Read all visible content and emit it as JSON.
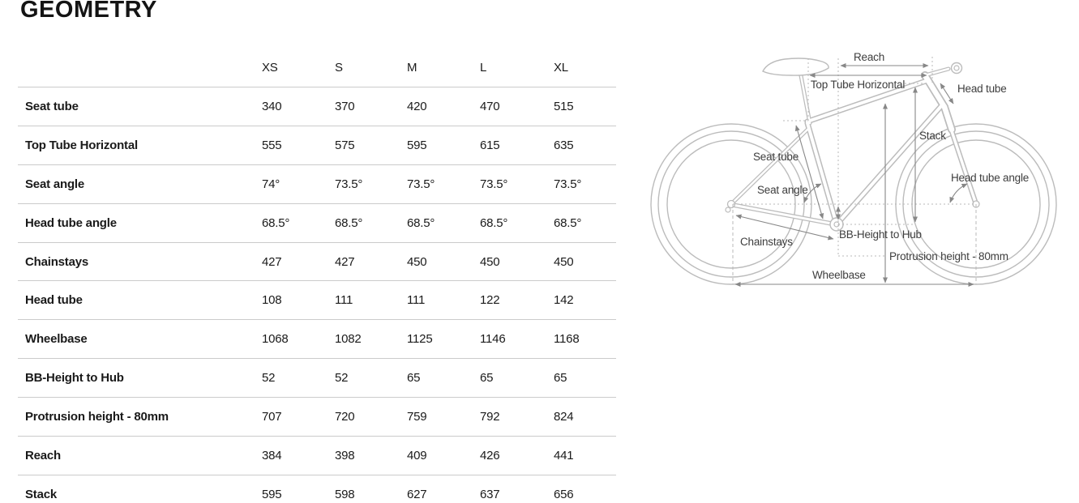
{
  "page": {
    "title": "GEOMETRY"
  },
  "table": {
    "columns": [
      "XS",
      "S",
      "M",
      "L",
      "XL"
    ],
    "rows": [
      {
        "label": "Seat tube",
        "values": [
          "340",
          "370",
          "420",
          "470",
          "515"
        ]
      },
      {
        "label": "Top Tube Horizontal",
        "values": [
          "555",
          "575",
          "595",
          "615",
          "635"
        ]
      },
      {
        "label": "Seat angle",
        "values": [
          "74°",
          "73.5°",
          "73.5°",
          "73.5°",
          "73.5°"
        ]
      },
      {
        "label": "Head tube angle",
        "values": [
          "68.5°",
          "68.5°",
          "68.5°",
          "68.5°",
          "68.5°"
        ]
      },
      {
        "label": "Chainstays",
        "values": [
          "427",
          "427",
          "450",
          "450",
          "450"
        ]
      },
      {
        "label": "Head tube",
        "values": [
          "108",
          "111",
          "111",
          "122",
          "142"
        ]
      },
      {
        "label": "Wheelbase",
        "values": [
          "1068",
          "1082",
          "1125",
          "1146",
          "1168"
        ]
      },
      {
        "label": "BB-Height to Hub",
        "values": [
          "52",
          "52",
          "65",
          "65",
          "65"
        ]
      },
      {
        "label": "Protrusion height - 80mm",
        "values": [
          "707",
          "720",
          "759",
          "792",
          "824"
        ]
      },
      {
        "label": "Reach",
        "values": [
          "384",
          "398",
          "409",
          "426",
          "441"
        ]
      },
      {
        "label": "Stack",
        "values": [
          "595",
          "598",
          "627",
          "637",
          "656"
        ]
      }
    ]
  },
  "diagram": {
    "labels": {
      "reach": "Reach",
      "top_tube_horizontal": "Top Tube Horizontal",
      "head_tube": "Head tube",
      "stack": "Stack",
      "seat_tube": "Seat tube",
      "seat_angle": "Seat angle",
      "head_tube_angle": "Head tube angle",
      "chainstays": "Chainstays",
      "bb_height_to_hub": "BB-Height to Hub",
      "protrusion_height": "Protrusion height - 80mm",
      "wheelbase": "Wheelbase"
    }
  },
  "colors": {
    "text": "#1a1a1a",
    "table_line": "#cbcbcb",
    "bike_outline": "#bcbcbc",
    "dimension_arrow": "#878787",
    "construction_line": "#b8b8b8"
  }
}
